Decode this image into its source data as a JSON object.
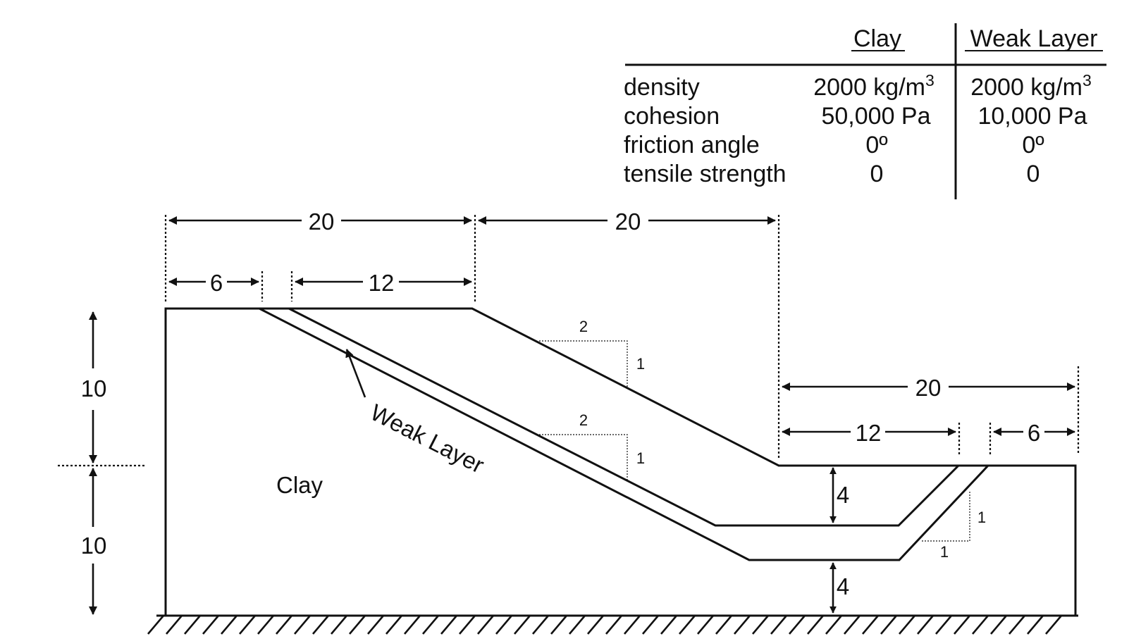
{
  "table": {
    "headers": [
      "Clay",
      "Weak Layer"
    ],
    "rows": [
      {
        "property": "density",
        "clay": "2000 kg/m",
        "clay_sup": "3",
        "weak": "2000 kg/m",
        "weak_sup": "3"
      },
      {
        "property": "cohesion",
        "clay": "50,000 Pa",
        "weak": "10,000 Pa"
      },
      {
        "property": "friction angle",
        "clay": "0º",
        "weak": "0º"
      },
      {
        "property": "tensile strength",
        "clay": "0",
        "weak": "0"
      }
    ]
  },
  "dimensions": {
    "top_left_width": "20",
    "top_slope_width": "20",
    "top_left_part1": "6",
    "top_left_part2": "12",
    "bottom_right_width": "20",
    "bottom_right_part1": "12",
    "bottom_right_part2": "6",
    "left_upper_height": "10",
    "left_lower_height": "10",
    "layer_thickness_upper": "4",
    "layer_thickness_lower": "4"
  },
  "slopes": {
    "upper": {
      "run": "2",
      "rise": "1"
    },
    "middle": {
      "run": "2",
      "rise": "1"
    },
    "right": {
      "run": "1",
      "rise": "1"
    }
  },
  "labels": {
    "weak_layer": "Weak Layer",
    "clay": "Clay"
  }
}
